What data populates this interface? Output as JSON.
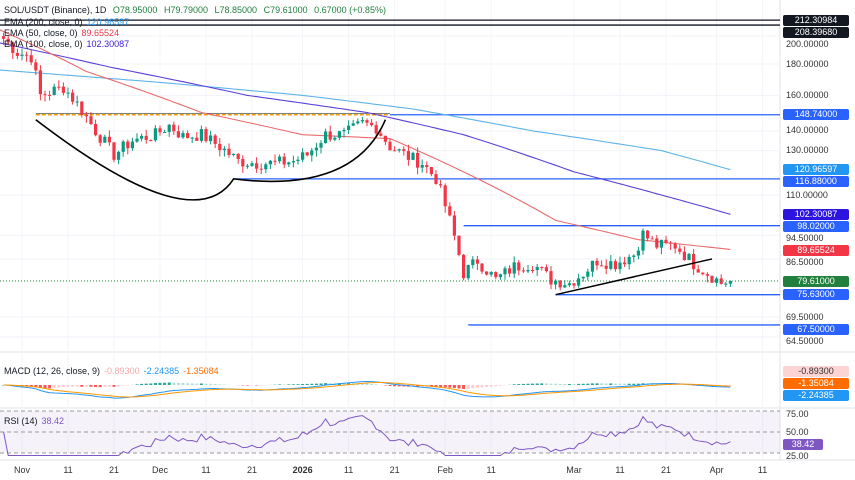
{
  "header": {
    "symbol": "SOL/USDT (Binance), 1D",
    "open": "O78.95000",
    "high": "H79.79000",
    "low": "L78.85000",
    "close": "C79.61000",
    "change": "0.67000 (+0.85%)"
  },
  "indicators": {
    "ema200": {
      "label": "EMA (200, close, 0)",
      "value": "120.96597",
      "color": "#2196f3"
    },
    "ema50": {
      "label": "EMA (50, close, 0)",
      "value": "89.65524",
      "color": "#f23645"
    },
    "ema100": {
      "label": "EMA (100, close, 0)",
      "value": "102.30087",
      "color": "#3d1bd6"
    },
    "macd": {
      "label": "MACD (12, 26, close, 9)",
      "hist": "-0.89300",
      "macd": "-2.24385",
      "signal": "-1.35084"
    },
    "rsi": {
      "label": "RSI (14)",
      "value": "38.42"
    }
  },
  "chart_data": {
    "type": "candlestick",
    "scale": "log",
    "ylim": [
      64.5,
      212
    ],
    "y_ticks": [
      "200.00000",
      "180.00000",
      "160.00000",
      "140.00000",
      "130.00000",
      "110.00000",
      "94.50000",
      "86.50000",
      "69.50000",
      "64.50000"
    ],
    "x_ticks": [
      [
        "Nov",
        "2025-11-01"
      ],
      [
        "11",
        "2025-11-11"
      ],
      [
        "21",
        "2025-11-21"
      ],
      [
        "Dec",
        "2025-12-01"
      ],
      [
        "11",
        "2025-12-11"
      ],
      [
        "21",
        "2025-12-21"
      ],
      [
        "2026",
        "2026-01-01"
      ],
      [
        "11",
        "2026-01-11"
      ],
      [
        "21",
        "2026-01-21"
      ],
      [
        "Feb",
        "2026-02-01"
      ],
      [
        "11",
        "2026-02-11"
      ],
      [
        "Mar",
        "2026-03-01"
      ],
      [
        "11",
        "2026-03-11"
      ],
      [
        "21",
        "2026-03-21"
      ],
      [
        "Apr",
        "2026-04-01"
      ],
      [
        "11",
        "2026-04-11"
      ]
    ],
    "close_path": [
      [
        "2025-10-28",
        198
      ],
      [
        "2025-10-31",
        188
      ],
      [
        "2025-11-03",
        185
      ],
      [
        "2025-11-05",
        160
      ],
      [
        "2025-11-10",
        165
      ],
      [
        "2025-11-13",
        155
      ],
      [
        "2025-11-17",
        140
      ],
      [
        "2025-11-21",
        128
      ],
      [
        "2025-11-25",
        135
      ],
      [
        "2025-11-30",
        138
      ],
      [
        "2025-12-03",
        143
      ],
      [
        "2025-12-06",
        137
      ],
      [
        "2025-12-10",
        138
      ],
      [
        "2025-12-14",
        132
      ],
      [
        "2025-12-18",
        125
      ],
      [
        "2025-12-22",
        124
      ],
      [
        "2025-12-26",
        124
      ],
      [
        "2025-12-30",
        125
      ],
      [
        "2026-01-02",
        128
      ],
      [
        "2026-01-06",
        138
      ],
      [
        "2026-01-10",
        138
      ],
      [
        "2026-01-14",
        144
      ],
      [
        "2026-01-17",
        142
      ],
      [
        "2026-01-20",
        132
      ],
      [
        "2026-01-24",
        127
      ],
      [
        "2026-01-27",
        124
      ],
      [
        "2026-01-30",
        117
      ],
      [
        "2026-02-02",
        100
      ],
      [
        "2026-02-05",
        82
      ],
      [
        "2026-02-08",
        86
      ],
      [
        "2026-02-12",
        80
      ],
      [
        "2026-02-16",
        84
      ],
      [
        "2026-02-20",
        85
      ],
      [
        "2026-02-24",
        80
      ],
      [
        "2026-02-28",
        79
      ],
      [
        "2026-03-03",
        82
      ],
      [
        "2026-03-06",
        86
      ],
      [
        "2026-03-10",
        85
      ],
      [
        "2026-03-14",
        88
      ],
      [
        "2026-03-16",
        95
      ],
      [
        "2026-03-19",
        91
      ],
      [
        "2026-03-23",
        91
      ],
      [
        "2026-03-27",
        85
      ],
      [
        "2026-03-30",
        82
      ],
      [
        "2026-04-02",
        79
      ],
      [
        "2026-04-04",
        79.61
      ]
    ],
    "ema200_path": [
      [
        "2025-10-27",
        176
      ],
      [
        "2025-12-01",
        168
      ],
      [
        "2026-01-01",
        160
      ],
      [
        "2026-01-25",
        152
      ],
      [
        "2026-02-20",
        140
      ],
      [
        "2026-03-20",
        130
      ],
      [
        "2026-04-04",
        120.97
      ]
    ],
    "ema100_path": [
      [
        "2025-10-27",
        195
      ],
      [
        "2025-11-20",
        178
      ],
      [
        "2025-12-20",
        160
      ],
      [
        "2026-01-15",
        150
      ],
      [
        "2026-02-05",
        138
      ],
      [
        "2026-03-01",
        120
      ],
      [
        "2026-03-20",
        110
      ],
      [
        "2026-04-04",
        102.3
      ]
    ],
    "ema50_path": [
      [
        "2025-10-27",
        205
      ],
      [
        "2025-11-15",
        175
      ],
      [
        "2025-12-10",
        150
      ],
      [
        "2026-01-01",
        138
      ],
      [
        "2026-01-20",
        136
      ],
      [
        "2026-02-05",
        120
      ],
      [
        "2026-02-25",
        100
      ],
      [
        "2026-03-15",
        93
      ],
      [
        "2026-04-04",
        89.66
      ]
    ],
    "levels": [
      {
        "price": 212.30984,
        "label": "212.30984",
        "color": "#131722",
        "from": "2025-10-27"
      },
      {
        "price": 208.3968,
        "label": "208.39680",
        "color": "#131722",
        "from": "2025-10-27"
      },
      {
        "price": 148.74,
        "label": "148.74000",
        "color": "#2962ff",
        "from": "2026-01-20"
      },
      {
        "price": 116.88,
        "label": "116.88000",
        "color": "#2962ff",
        "from": "2025-12-17"
      },
      {
        "price": 98.02,
        "label": "98.02000",
        "color": "#2962ff",
        "from": "2026-02-05"
      },
      {
        "price": 75.63,
        "label": "75.63000",
        "color": "#2962ff",
        "from": "2026-02-25"
      },
      {
        "price": 67.5,
        "label": "67.50000",
        "color": "#2962ff",
        "from": "2026-02-06"
      }
    ],
    "value_tags": [
      {
        "label": "120.96597",
        "color": "#2196f3",
        "price": 120.96597
      },
      {
        "label": "102.30087",
        "color": "#2e14e0",
        "price": 102.30087
      },
      {
        "label": "89.65524",
        "color": "#f23645",
        "price": 89.65524
      },
      {
        "label": "79.61000",
        "color": "#22803f",
        "price": 79.61
      }
    ],
    "resistance_dashed": {
      "price": 148.74,
      "from": "2025-11-04",
      "to": "2026-01-20",
      "color": "#f59e0b"
    },
    "cup": {
      "left": [
        "2025-11-04",
        146
      ],
      "bottom": [
        "2025-12-17",
        116.88
      ],
      "right": [
        "2026-01-19",
        146
      ]
    },
    "trendline": [
      [
        "2026-02-25",
        75.63
      ],
      [
        "2026-03-31",
        86.5
      ]
    ],
    "macd_axis": [
      {
        "label": "-0.89300",
        "bg": "#fcd4d4",
        "fg": "#333"
      },
      {
        "label": "-1.35084",
        "bg": "#ff6d00",
        "fg": "#fff"
      },
      {
        "label": "-2.24385",
        "bg": "#2196f3",
        "fg": "#fff"
      }
    ],
    "rsi_ticks": [
      "75.00",
      "50.00",
      "25.00"
    ],
    "rsi_tag": "38.42"
  }
}
